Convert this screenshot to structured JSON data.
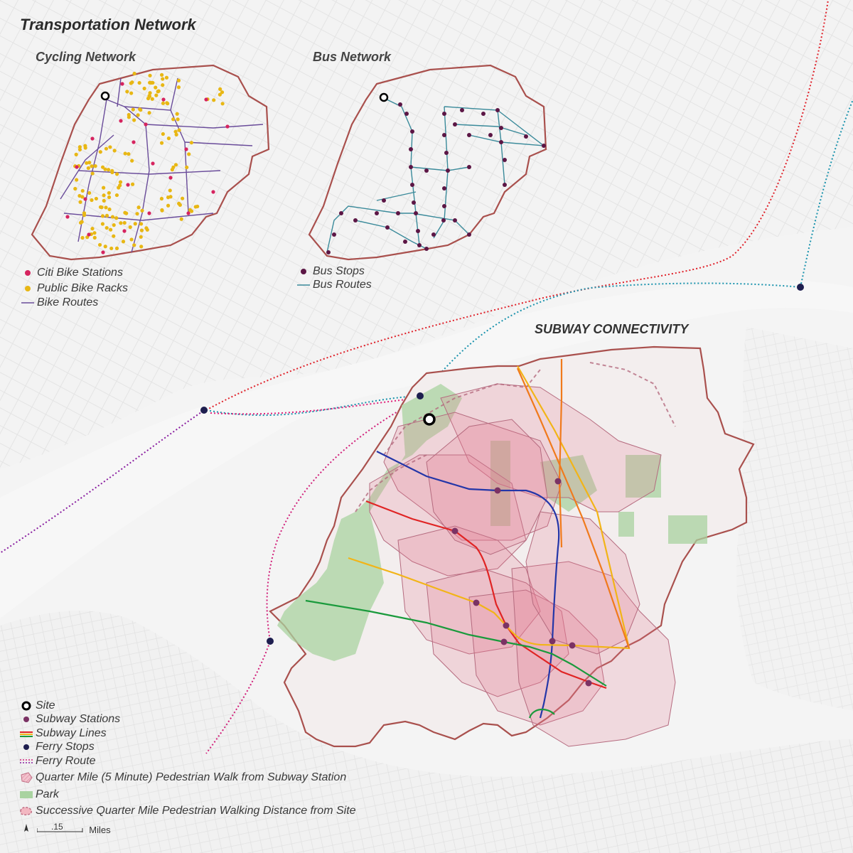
{
  "title": "Transportation Network",
  "cycling": {
    "title": "Cycling Network",
    "legend": [
      "Citi Bike Stations",
      "Public Bike Racks",
      "Bike Routes"
    ]
  },
  "bus": {
    "title": "Bus Network",
    "legend": [
      "Bus Stops",
      "Bus Routes"
    ]
  },
  "subway": {
    "title": "SUBWAY CONNECTIVITY"
  },
  "legend": [
    "Site",
    "Subway Stations",
    "Subway Lines",
    "Ferry Stops",
    "Ferry Route",
    "Quarter Mile (5 Minute) Pedestrian Walk from Subway Station",
    "Park",
    "Successive Quarter Mile Pedestrian Walking Distance from Site"
  ],
  "scale": {
    "value": ".15",
    "unit": "Miles"
  },
  "colors": {
    "boundary": "#a9504d",
    "citi_bike": "#d6245f",
    "bike_rack": "#e8b714",
    "bike_route": "#6a4c9a",
    "bus_stop": "#5c1645",
    "bus_route": "#3a8a9a",
    "subway_station": "#7b3264",
    "ferry_stop": "#1e1e4f",
    "ferry_red": "#e0212a",
    "ferry_teal": "#1a93ad",
    "ferry_purple": "#8a1fa0",
    "park": "#a9d3a0",
    "walk_zone": "#e27a93",
    "line_blue": "#2436a8",
    "line_red": "#e02424",
    "line_yellow": "#f2b417",
    "line_green": "#1a9a3c",
    "line_orange": "#f07a1c"
  }
}
